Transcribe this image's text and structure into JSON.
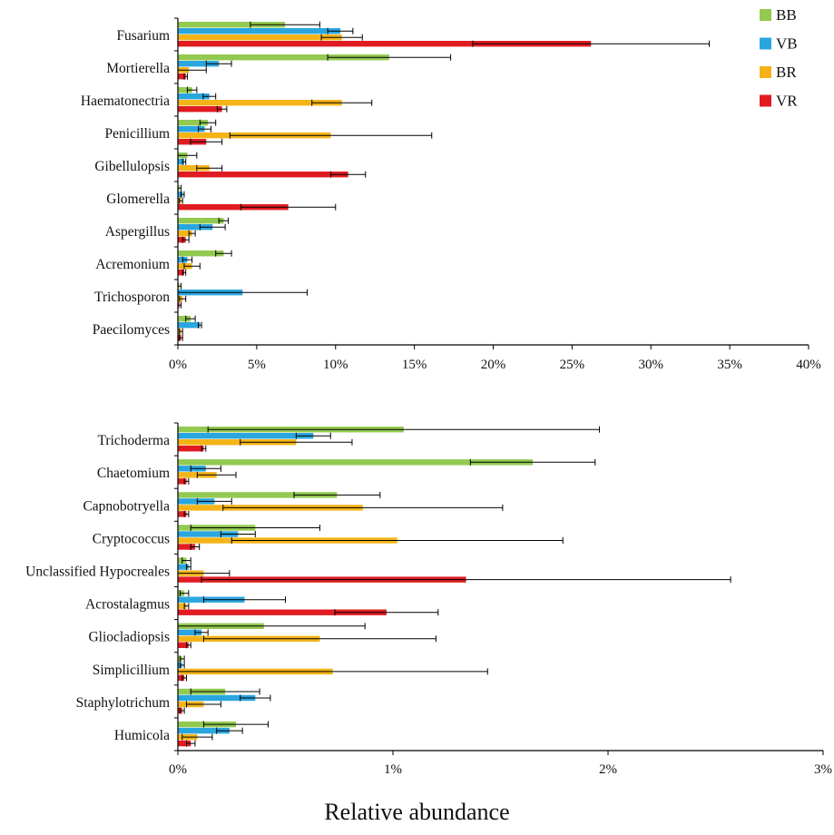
{
  "colors": {
    "BB": "#92c950",
    "VB": "#2aa6df",
    "BR": "#f4b418",
    "VR": "#e01c22",
    "axis": "#000000",
    "errorbar": "#000000"
  },
  "xlabel": "Relative abundance",
  "legend": {
    "placement": "top-right",
    "items": [
      "BB",
      "VB",
      "BR",
      "VR"
    ]
  },
  "chart_data": [
    {
      "type": "bar",
      "orientation": "horizontal",
      "categories": [
        "Fusarium",
        "Mortierella",
        "Haematonectria",
        "Penicillium",
        "Gibellulopsis",
        "Glomerella",
        "Aspergillus",
        "Acremonium",
        "Trichosporon",
        "Paecilomyces"
      ],
      "tick_labels": [
        "0%",
        "5%",
        "10%",
        "15%",
        "20%",
        "25%",
        "30%",
        "35%",
        "40%"
      ],
      "xlim": [
        0,
        40
      ],
      "unit": "percent",
      "grid": false,
      "series": [
        {
          "name": "BB",
          "values": [
            6.8,
            13.4,
            0.9,
            1.9,
            0.6,
            0.1,
            2.9,
            2.9,
            0.1,
            0.8
          ],
          "errors": [
            2.2,
            3.9,
            0.3,
            0.5,
            0.6,
            0.1,
            0.3,
            0.5,
            0.1,
            0.3
          ]
        },
        {
          "name": "VB",
          "values": [
            10.3,
            2.6,
            2.0,
            1.7,
            0.4,
            0.3,
            2.2,
            0.6,
            4.1,
            1.4
          ],
          "errors": [
            0.8,
            0.8,
            0.4,
            0.4,
            0.1,
            0.1,
            0.8,
            0.3,
            4.1,
            0.1
          ]
        },
        {
          "name": "BR",
          "values": [
            10.4,
            0.7,
            10.4,
            9.7,
            2.0,
            0.2,
            0.9,
            0.9,
            0.3,
            0.2
          ],
          "errors": [
            1.3,
            1.1,
            1.9,
            6.4,
            0.8,
            0.1,
            0.2,
            0.5,
            0.2,
            0.1
          ]
        },
        {
          "name": "VR",
          "values": [
            26.2,
            0.5,
            2.8,
            1.8,
            10.8,
            7.0,
            0.5,
            0.4,
            0.1,
            0.2
          ],
          "errors": [
            7.5,
            0.1,
            0.3,
            1.0,
            1.1,
            3.0,
            0.2,
            0.1,
            0.1,
            0.1
          ]
        }
      ]
    },
    {
      "type": "bar",
      "orientation": "horizontal",
      "categories": [
        "Trichoderma",
        "Chaetomium",
        "Capnobotryella",
        "Cryptococcus",
        "Unclassified Hypocreales",
        "Acrostalagmus",
        "Gliocladiopsis",
        "Simplicillium",
        "Staphylotrichum",
        "Humicola"
      ],
      "tick_labels": [
        "0%",
        "1%",
        "2%",
        "3%"
      ],
      "xlim": [
        0,
        3
      ],
      "unit": "percent",
      "grid": false,
      "series": [
        {
          "name": "BB",
          "values": [
            1.05,
            1.65,
            0.74,
            0.36,
            0.04,
            0.03,
            0.4,
            0.02,
            0.22,
            0.27
          ],
          "errors": [
            0.91,
            0.29,
            0.2,
            0.3,
            0.02,
            0.02,
            0.47,
            0.01,
            0.16,
            0.15
          ]
        },
        {
          "name": "VB",
          "values": [
            0.63,
            0.13,
            0.17,
            0.28,
            0.05,
            0.31,
            0.11,
            0.02,
            0.36,
            0.24
          ],
          "errors": [
            0.08,
            0.07,
            0.08,
            0.08,
            0.01,
            0.19,
            0.03,
            0.01,
            0.07,
            0.06
          ]
        },
        {
          "name": "BR",
          "values": [
            0.55,
            0.18,
            0.86,
            1.02,
            0.12,
            0.04,
            0.66,
            0.72,
            0.12,
            0.09
          ],
          "errors": [
            0.26,
            0.09,
            0.65,
            0.77,
            0.12,
            0.01,
            0.54,
            0.72,
            0.08,
            0.07
          ]
        },
        {
          "name": "VR",
          "values": [
            0.12,
            0.04,
            0.04,
            0.08,
            1.34,
            0.97,
            0.05,
            0.03,
            0.02,
            0.06
          ],
          "errors": [
            0.01,
            0.01,
            0.01,
            0.02,
            1.23,
            0.24,
            0.01,
            0.01,
            0.01,
            0.02
          ]
        }
      ]
    }
  ]
}
